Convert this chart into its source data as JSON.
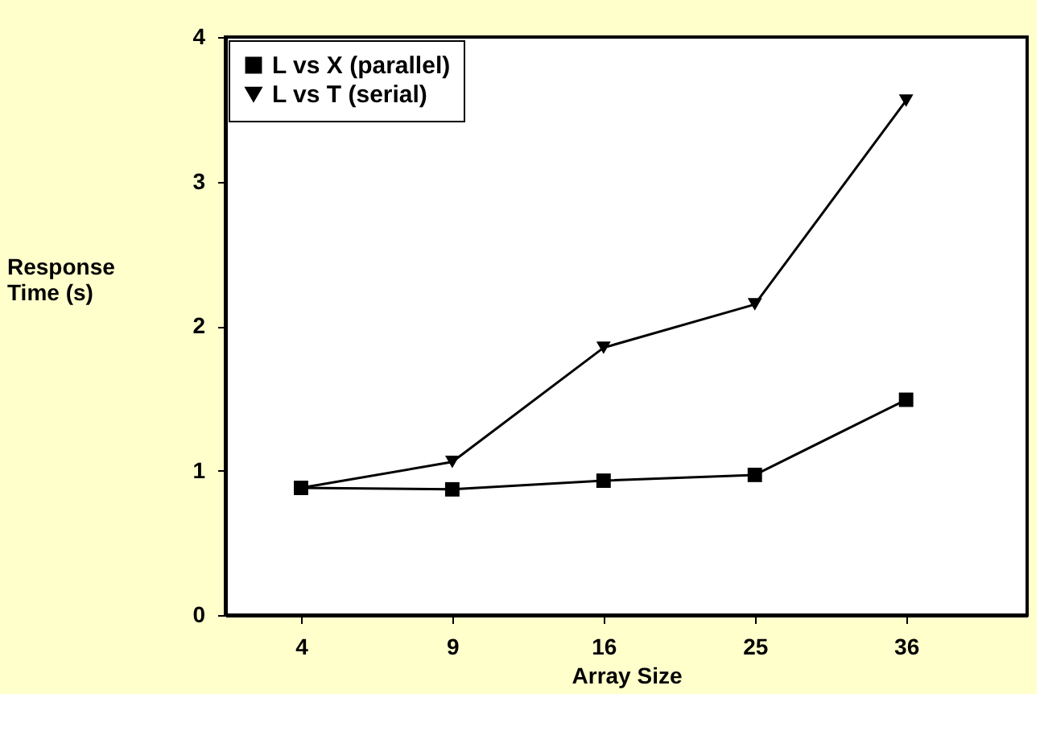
{
  "chart_data": {
    "type": "line",
    "xlabel": "Array Size",
    "ylabel": "Response Time (s)",
    "categories": [
      "4",
      "9",
      "16",
      "25",
      "36"
    ],
    "series": [
      {
        "name": "L vs X (parallel)",
        "color": "#000000",
        "marker": "square",
        "values": [
          0.88,
          0.87,
          0.93,
          0.97,
          1.49
        ]
      },
      {
        "name": "L vs T (serial)",
        "color": "#000000",
        "marker": "triangle",
        "values": [
          0.88,
          1.06,
          1.85,
          2.15,
          3.56
        ]
      }
    ],
    "ylim": [
      0,
      4
    ],
    "yticks": [
      {
        "value": 0,
        "label": "0"
      },
      {
        "value": 1,
        "label": "1"
      },
      {
        "value": 2,
        "label": "2"
      },
      {
        "value": 3,
        "label": "3"
      },
      {
        "value": 4,
        "label": "4"
      }
    ],
    "grid": false,
    "legend": "top left"
  }
}
